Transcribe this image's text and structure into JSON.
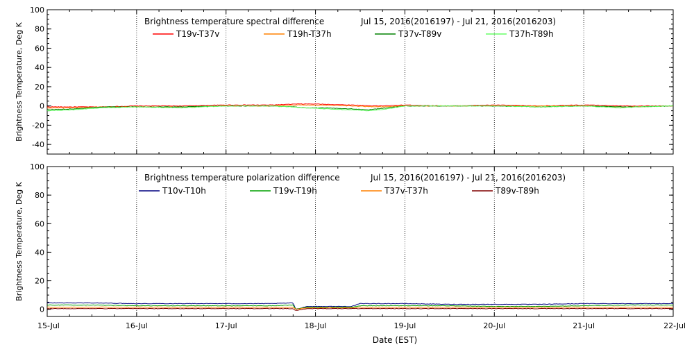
{
  "chart_data": [
    {
      "type": "line",
      "title": "Brightness temperature spectral difference",
      "date_range": "Jul 15, 2016(2016197) - Jul 21, 2016(2016203)",
      "ylabel": "Brightness Temperature, Deg K",
      "xlabel": "",
      "ylim": [
        -50,
        100
      ],
      "yticks": [
        -40,
        -20,
        0,
        20,
        40,
        60,
        80,
        100
      ],
      "xlim": [
        0,
        7
      ],
      "x_unit": "days since 15-Jul",
      "xticks": [
        "15-Jul",
        "16-Jul",
        "17-Jul",
        "18-Jul",
        "19-Jul",
        "20-Jul",
        "21-Jul",
        "22-Jul"
      ],
      "x_tick_labels_shown": false,
      "grid": "vertical dotted at day boundaries",
      "legend": "top, inside plot, single row",
      "series": [
        {
          "name": "T19v-T37v",
          "color": "#ff0000",
          "x": [
            0,
            0.3,
            0.6,
            1.0,
            1.5,
            2.0,
            2.5,
            2.8,
            3.0,
            3.4,
            3.7,
            4.0,
            4.5,
            5.0,
            5.5,
            6.0,
            6.5,
            7.0
          ],
          "y": [
            -1,
            -1,
            -1,
            0,
            0,
            1,
            1,
            2,
            2,
            1,
            0,
            1,
            0,
            1,
            0,
            1,
            0,
            0
          ]
        },
        {
          "name": "T19h-T37h",
          "color": "#ff8000",
          "x": [
            0,
            0.3,
            0.6,
            1.0,
            1.5,
            2.0,
            2.5,
            2.8,
            3.0,
            3.4,
            3.7,
            4.0,
            4.5,
            5.0,
            5.5,
            6.0,
            6.5,
            7.0
          ],
          "y": [
            -2,
            -2,
            -1,
            -1,
            -1,
            0,
            0,
            1,
            1,
            0,
            -1,
            0,
            0,
            0,
            0,
            0,
            -1,
            0
          ]
        },
        {
          "name": "T37v-T89v",
          "color": "#008000",
          "x": [
            0,
            0.3,
            0.6,
            1.0,
            1.5,
            2.0,
            2.5,
            2.75,
            2.9,
            3.1,
            3.4,
            3.6,
            3.8,
            4.0,
            4.5,
            5.0,
            5.5,
            6.0,
            6.5,
            7.0
          ],
          "y": [
            -4,
            -3,
            -1,
            -1,
            -1,
            0,
            0,
            -1,
            -2,
            -2,
            -3,
            -4,
            -2,
            0,
            0,
            0,
            -1,
            0,
            -1,
            0
          ]
        },
        {
          "name": "T37h-T89h",
          "color": "#66ff66",
          "x": [
            0,
            0.3,
            0.6,
            1.0,
            1.5,
            2.0,
            2.5,
            2.75,
            2.9,
            3.1,
            3.4,
            3.6,
            3.8,
            4.0,
            4.5,
            5.0,
            5.5,
            6.0,
            6.4,
            6.6,
            7.0
          ],
          "y": [
            -5,
            -4,
            -2,
            -1,
            -2,
            0,
            0,
            -1,
            -2,
            -3,
            -4,
            -5,
            -3,
            0,
            0,
            0,
            -1,
            0,
            -2,
            -1,
            0
          ]
        }
      ]
    },
    {
      "type": "line",
      "title": "Brightness temperature polarization difference",
      "date_range": "Jul 15, 2016(2016197) - Jul 21, 2016(2016203)",
      "ylabel": "Brightness Temperature, Deg K",
      "xlabel": "Date (EST)",
      "ylim": [
        -5,
        100
      ],
      "yticks": [
        0,
        20,
        40,
        60,
        80,
        100
      ],
      "xlim": [
        0,
        7
      ],
      "x_unit": "days since 15-Jul",
      "xticks": [
        "15-Jul",
        "16-Jul",
        "17-Jul",
        "18-Jul",
        "19-Jul",
        "20-Jul",
        "21-Jul",
        "22-Jul"
      ],
      "x_tick_labels_shown": true,
      "grid": "vertical dotted at day boundaries",
      "legend": "top, inside plot, single row",
      "series": [
        {
          "name": "T10v-T10h",
          "color": "#000080",
          "x": [
            0,
            0.5,
            1.0,
            1.5,
            2.0,
            2.5,
            2.75,
            2.78,
            2.9,
            3.4,
            3.5,
            4.0,
            4.5,
            5.0,
            5.5,
            6.0,
            6.5,
            7.0
          ],
          "y": [
            4.5,
            4.5,
            4,
            4,
            4,
            4,
            4.5,
            0,
            2,
            2,
            4,
            4,
            3.5,
            3.5,
            3.5,
            4,
            4,
            4
          ]
        },
        {
          "name": "T19v-T19h",
          "color": "#00a000",
          "x": [
            0,
            0.5,
            1.0,
            1.5,
            2.0,
            2.5,
            2.75,
            2.78,
            2.9,
            3.4,
            3.5,
            4.0,
            4.5,
            5.0,
            5.5,
            6.0,
            6.5,
            7.0
          ],
          "y": [
            3,
            3,
            2.5,
            2.5,
            2.5,
            2.5,
            3,
            0,
            1.5,
            1.5,
            2.5,
            2.5,
            2.5,
            2,
            2,
            2.5,
            3,
            3
          ]
        },
        {
          "name": "T37v-T37h",
          "color": "#ff8000",
          "x": [
            0,
            1.0,
            2.0,
            2.75,
            2.78,
            2.9,
            3.4,
            3.5,
            4.0,
            5.0,
            6.0,
            7.0
          ],
          "y": [
            1.5,
            1.5,
            1.5,
            1.5,
            0,
            1,
            1,
            1.5,
            1.5,
            1.5,
            1.5,
            1.5
          ]
        },
        {
          "name": "T89v-T89h",
          "color": "#800000",
          "x": [
            0,
            1.0,
            2.0,
            2.75,
            2.78,
            2.9,
            3.4,
            3.5,
            4.0,
            5.0,
            6.0,
            7.0
          ],
          "y": [
            0.5,
            0.5,
            0.5,
            0.5,
            -1,
            0.5,
            0.5,
            0.5,
            0.5,
            0.5,
            0.5,
            0.5
          ]
        }
      ]
    }
  ]
}
